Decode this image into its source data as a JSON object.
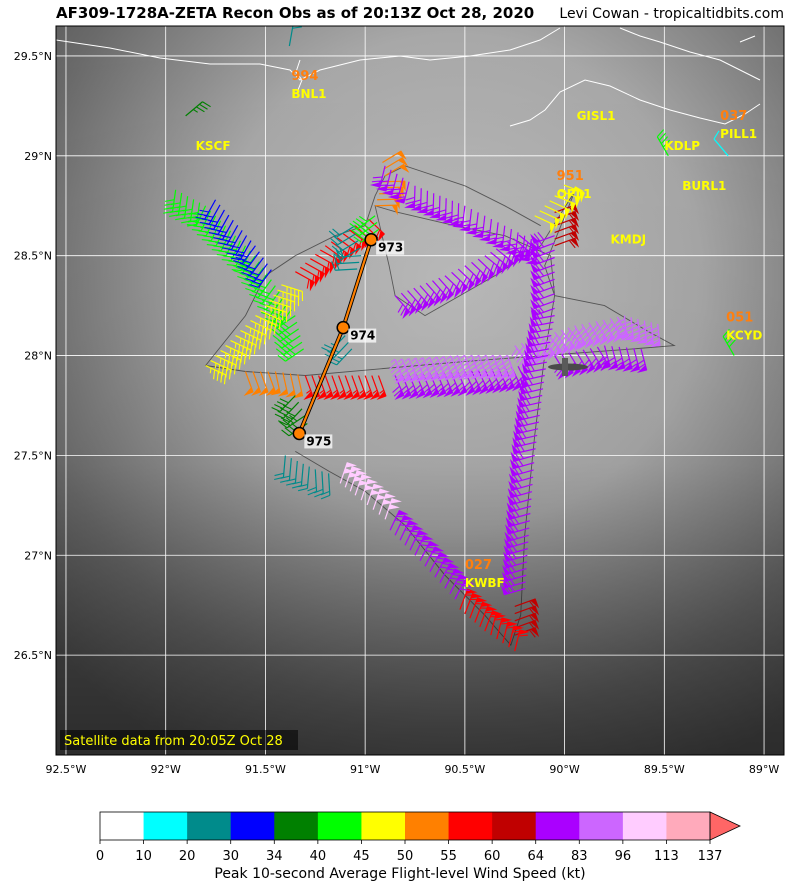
{
  "header": {
    "title": "AF309-1728A-ZETA Recon Obs as of 20:13Z Oct 28, 2020",
    "credit": "Levi Cowan - tropicaltidbits.com"
  },
  "map": {
    "lon_range": [
      -92.55,
      -88.9
    ],
    "lat_range": [
      26.0,
      29.65
    ],
    "lon_ticks": [
      {
        "value": -92.5,
        "label": "92.5°W"
      },
      {
        "value": -92.0,
        "label": "92°W"
      },
      {
        "value": -91.5,
        "label": "91.5°W"
      },
      {
        "value": -91.0,
        "label": "91°W"
      },
      {
        "value": -90.5,
        "label": "90.5°W"
      },
      {
        "value": -90.0,
        "label": "90°W"
      },
      {
        "value": -89.5,
        "label": "89.5°W"
      },
      {
        "value": -89.0,
        "label": "89°W"
      }
    ],
    "lat_ticks": [
      {
        "value": 29.5,
        "label": "29.5°N"
      },
      {
        "value": 29.0,
        "label": "29°N"
      },
      {
        "value": 28.5,
        "label": "28.5°N"
      },
      {
        "value": 28.0,
        "label": "28°N"
      },
      {
        "value": 27.5,
        "label": "27.5°N"
      },
      {
        "value": 27.0,
        "label": "27°N"
      },
      {
        "value": 26.5,
        "label": "26.5°N"
      }
    ],
    "satellite_note": "Satellite data from 20:05Z Oct 28",
    "stations": [
      {
        "name": "KSCF",
        "lon": -91.85,
        "lat": 29.05,
        "pressure": ""
      },
      {
        "name": "BNL1",
        "lon": -91.37,
        "lat": 29.31,
        "pressure": "994"
      },
      {
        "name": "GISL1",
        "lon": -89.94,
        "lat": 29.2,
        "pressure": ""
      },
      {
        "name": "PILL1",
        "lon": -89.22,
        "lat": 29.11,
        "pressure": "037"
      },
      {
        "name": "KDLP",
        "lon": -89.5,
        "lat": 29.05,
        "pressure": ""
      },
      {
        "name": "BURL1",
        "lon": -89.41,
        "lat": 28.85,
        "pressure": ""
      },
      {
        "name": "OPL1",
        "lon": -90.04,
        "lat": 28.81,
        "pressure": "951"
      },
      {
        "name": "KMDJ",
        "lon": -89.77,
        "lat": 28.58,
        "pressure": ""
      },
      {
        "name": "KCYD",
        "lon": -89.19,
        "lat": 28.1,
        "pressure": "051"
      },
      {
        "name": "KWBF",
        "lon": -90.5,
        "lat": 26.86,
        "pressure": "027"
      }
    ],
    "vortex_fixes": [
      {
        "lon": -90.97,
        "lat": 28.58,
        "pressure": "973"
      },
      {
        "lon": -91.11,
        "lat": 28.14,
        "pressure": "974"
      },
      {
        "lon": -91.33,
        "lat": 27.61,
        "pressure": "975"
      }
    ],
    "flight_track": [
      [
        -91.35,
        27.52
      ],
      [
        -91.18,
        27.42
      ],
      [
        -91.0,
        27.32
      ],
      [
        -90.8,
        27.15
      ],
      [
        -90.6,
        26.9
      ],
      [
        -90.4,
        26.7
      ],
      [
        -90.27,
        26.55
      ],
      [
        -90.22,
        26.7
      ],
      [
        -90.2,
        27.1
      ],
      [
        -90.15,
        27.6
      ],
      [
        -90.1,
        28.0
      ],
      [
        -90.05,
        28.3
      ],
      [
        -90.07,
        28.5
      ],
      [
        -90.3,
        28.6
      ],
      [
        -90.55,
        28.65
      ],
      [
        -90.85,
        28.72
      ],
      [
        -90.95,
        28.75
      ],
      [
        -90.88,
        28.45
      ],
      [
        -90.85,
        28.3
      ],
      [
        -90.7,
        28.2
      ],
      [
        -90.35,
        28.4
      ],
      [
        -90.12,
        28.55
      ],
      [
        -89.95,
        28.82
      ],
      [
        -90.1,
        28.45
      ],
      [
        -90.05,
        28.3
      ],
      [
        -89.8,
        28.25
      ],
      [
        -89.58,
        28.12
      ],
      [
        -89.45,
        28.05
      ],
      [
        -89.7,
        28.03
      ],
      [
        -90.1,
        28.0
      ],
      [
        -90.5,
        27.97
      ],
      [
        -90.85,
        27.94
      ],
      [
        -91.3,
        27.9
      ],
      [
        -91.6,
        27.92
      ],
      [
        -91.8,
        27.95
      ],
      [
        -91.6,
        28.2
      ],
      [
        -91.5,
        28.4
      ],
      [
        -91.35,
        28.5
      ],
      [
        -91.15,
        28.6
      ],
      [
        -91.0,
        28.65
      ],
      [
        -90.95,
        28.8
      ],
      [
        -90.9,
        28.9
      ],
      [
        -90.8,
        28.95
      ],
      [
        -90.5,
        28.85
      ],
      [
        -90.3,
        28.75
      ],
      [
        -90.12,
        28.65
      ]
    ],
    "barbs": [
      {
        "lon": -91.9,
        "lat": 29.2,
        "speed": 35,
        "dir": 50
      },
      {
        "lon": -91.38,
        "lat": 29.55,
        "speed": 22,
        "dir": 10
      },
      {
        "lon": -89.48,
        "lat": 29.0,
        "speed": 42,
        "dir": 330
      },
      {
        "lon": -89.18,
        "lat": 29.0,
        "speed": 12,
        "dir": 320
      },
      {
        "lon": -89.15,
        "lat": 28.0,
        "speed": 42,
        "dir": 330
      },
      {
        "lon": -90.0,
        "lat": 28.75,
        "speed": 48,
        "dir": 30
      }
    ],
    "segments": [
      {
        "speed": 42,
        "points": [
          [
            -91.95,
            28.83
          ],
          [
            -91.8,
            28.75
          ],
          [
            -91.65,
            28.6
          ],
          [
            -91.55,
            28.5
          ],
          [
            -91.45,
            28.35
          ],
          [
            -91.35,
            28.2
          ],
          [
            -91.3,
            28.0
          ]
        ]
      },
      {
        "speed": 32,
        "points": [
          [
            -91.75,
            28.78
          ],
          [
            -91.55,
            28.55
          ],
          [
            -91.45,
            28.4
          ]
        ]
      },
      {
        "speed": 46,
        "points": [
          [
            -91.8,
            27.95
          ],
          [
            -91.7,
            28.05
          ],
          [
            -91.6,
            28.15
          ],
          [
            -91.5,
            28.25
          ],
          [
            -91.4,
            28.38
          ]
        ]
      },
      {
        "speed": 52,
        "points": [
          [
            -91.6,
            27.92
          ],
          [
            -91.45,
            27.92
          ],
          [
            -91.3,
            27.9
          ]
        ]
      },
      {
        "speed": 57,
        "points": [
          [
            -91.3,
            27.9
          ],
          [
            -91.1,
            27.9
          ],
          [
            -90.9,
            27.9
          ]
        ]
      },
      {
        "speed": 58,
        "points": [
          [
            -91.35,
            28.42
          ],
          [
            -91.2,
            28.55
          ],
          [
            -91.05,
            28.65
          ],
          [
            -90.95,
            28.7
          ]
        ]
      },
      {
        "speed": 50,
        "points": [
          [
            -90.95,
            28.75
          ],
          [
            -90.9,
            28.9
          ],
          [
            -90.92,
            29.0
          ]
        ]
      },
      {
        "speed": 70,
        "points": [
          [
            -90.9,
            28.95
          ],
          [
            -90.75,
            28.85
          ],
          [
            -90.5,
            28.75
          ],
          [
            -90.3,
            28.65
          ],
          [
            -90.1,
            28.55
          ]
        ]
      },
      {
        "speed": 70,
        "points": [
          [
            -90.85,
            28.3
          ],
          [
            -90.6,
            28.4
          ],
          [
            -90.4,
            28.5
          ],
          [
            -90.2,
            28.62
          ]
        ]
      },
      {
        "speed": 70,
        "points": [
          [
            -90.85,
            27.9
          ],
          [
            -90.5,
            27.92
          ],
          [
            -90.2,
            27.95
          ]
        ]
      },
      {
        "speed": 95,
        "points": [
          [
            -90.85,
            27.98
          ],
          [
            -90.5,
            28.0
          ],
          [
            -90.25,
            28.0
          ]
        ]
      },
      {
        "speed": 88,
        "points": [
          [
            -90.25,
            28.05
          ],
          [
            -89.95,
            28.15
          ],
          [
            -89.7,
            28.2
          ],
          [
            -89.5,
            28.15
          ]
        ]
      },
      {
        "speed": 70,
        "points": [
          [
            -90.05,
            28.0
          ],
          [
            -89.8,
            28.05
          ],
          [
            -89.58,
            28.03
          ]
        ]
      },
      {
        "speed": 70,
        "points": [
          [
            -90.05,
            28.6
          ],
          [
            -90.05,
            28.2
          ],
          [
            -90.1,
            27.9
          ],
          [
            -90.15,
            27.5
          ],
          [
            -90.18,
            27.1
          ],
          [
            -90.2,
            26.8
          ]
        ]
      },
      {
        "speed": 60,
        "points": [
          [
            -90.25,
            26.6
          ],
          [
            -90.25,
            26.78
          ]
        ]
      },
      {
        "speed": 58,
        "points": [
          [
            -90.25,
            26.52
          ],
          [
            -90.4,
            26.62
          ],
          [
            -90.55,
            26.75
          ]
        ]
      },
      {
        "speed": 70,
        "points": [
          [
            -90.55,
            26.78
          ],
          [
            -90.75,
            27.0
          ],
          [
            -90.9,
            27.15
          ]
        ]
      },
      {
        "speed": 100,
        "points": [
          [
            -90.9,
            27.18
          ],
          [
            -91.05,
            27.3
          ],
          [
            -91.15,
            27.38
          ]
        ]
      },
      {
        "speed": 22,
        "points": [
          [
            -91.4,
            27.5
          ],
          [
            -91.25,
            27.43
          ],
          [
            -91.15,
            27.4
          ]
        ]
      },
      {
        "speed": 38,
        "points": [
          [
            -91.35,
            27.8
          ],
          [
            -91.3,
            27.7
          ],
          [
            -91.28,
            27.62
          ]
        ]
      },
      {
        "speed": 60,
        "points": [
          [
            -90.05,
            28.55
          ],
          [
            -90.05,
            28.75
          ]
        ]
      },
      {
        "speed": 48,
        "points": [
          [
            -90.15,
            28.7
          ],
          [
            -90.05,
            28.8
          ],
          [
            -89.98,
            28.88
          ]
        ]
      },
      {
        "speed": 22,
        "points": [
          [
            -91.05,
            28.65
          ],
          [
            -91.02,
            28.5
          ],
          [
            -91.05,
            28.4
          ]
        ]
      },
      {
        "speed": 42,
        "points": [
          [
            -90.95,
            28.7
          ],
          [
            -90.92,
            28.6
          ]
        ]
      },
      {
        "speed": 26,
        "points": [
          [
            -91.1,
            28.1
          ],
          [
            -91.05,
            28.0
          ]
        ]
      }
    ]
  },
  "colorbar": {
    "ticks": [
      "0",
      "10",
      "20",
      "30",
      "34",
      "40",
      "45",
      "50",
      "55",
      "60",
      "64",
      "83",
      "96",
      "113",
      "137"
    ],
    "colors": [
      "#ffffff",
      "#00ffff",
      "#008b8b",
      "#0000ff",
      "#008000",
      "#00ff00",
      "#ffff00",
      "#ff8000",
      "#ff0000",
      "#c00000",
      "#aa00ff",
      "#cc66ff",
      "#ffccff",
      "#ffaabb",
      "#ff6666"
    ],
    "label": "Peak 10-second Average Flight-level Wind Speed (kt)"
  },
  "colors": {
    "station_label": "#ffff00",
    "station_pressure": "#ff7f0e",
    "track_line": "#000000",
    "fix_line": "#ff8000",
    "grid": "#ffffff",
    "coast": "#ffffff"
  }
}
